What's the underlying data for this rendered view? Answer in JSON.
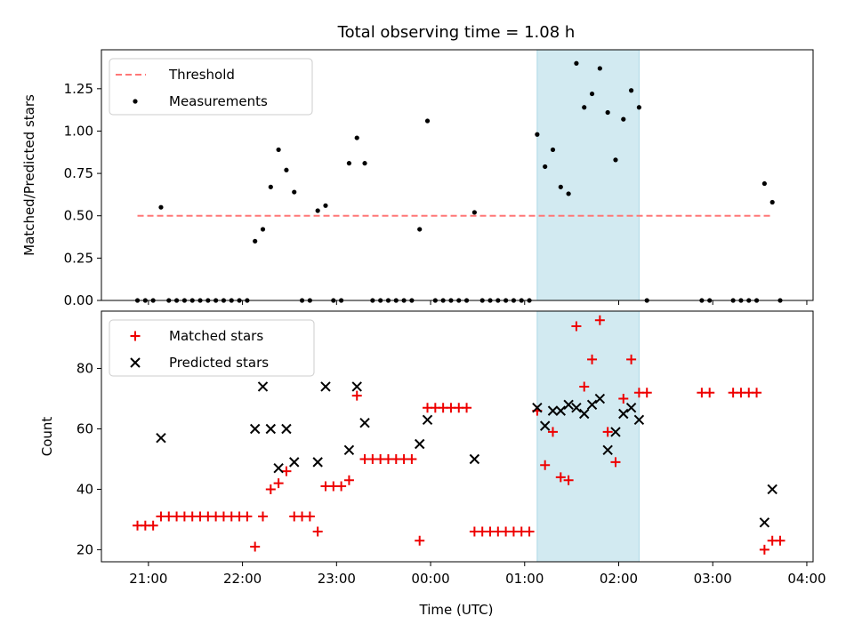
{
  "title": "Total observing time = 1.08 h",
  "colors": {
    "threshold": "#ff7777",
    "measurement": "#000000",
    "matched": "#ee0000",
    "predicted": "#000000",
    "span": "#add8e6"
  },
  "chart_data": [
    {
      "type": "scatter",
      "title": "Total observing time = 1.08 h",
      "xlabel": "",
      "ylabel": "Matched/Predicted stars",
      "xlim": [
        "20:30",
        "04:04"
      ],
      "ylim": [
        0,
        1.48
      ],
      "yticks": [
        "0.00",
        "0.25",
        "0.50",
        "0.75",
        "1.00",
        "1.25"
      ],
      "highlight_span": [
        "01:08",
        "02:13"
      ],
      "legend_position": "upper-left",
      "series": [
        {
          "name": "Threshold",
          "kind": "dashed-line",
          "x": [
            "20:53",
            "03:38"
          ],
          "y": [
            0.5,
            0.5
          ]
        },
        {
          "name": "Measurements",
          "kind": "points",
          "points": [
            [
              "20:53",
              0
            ],
            [
              "20:58",
              0
            ],
            [
              "21:03",
              0
            ],
            [
              "21:08",
              0.55
            ],
            [
              "21:13",
              0
            ],
            [
              "21:18",
              0
            ],
            [
              "21:23",
              0
            ],
            [
              "21:28",
              0
            ],
            [
              "21:33",
              0
            ],
            [
              "21:38",
              0
            ],
            [
              "21:43",
              0
            ],
            [
              "21:48",
              0
            ],
            [
              "21:53",
              0
            ],
            [
              "21:58",
              0
            ],
            [
              "22:03",
              0
            ],
            [
              "22:08",
              0.35
            ],
            [
              "22:13",
              0.42
            ],
            [
              "22:18",
              0.67
            ],
            [
              "22:23",
              0.89
            ],
            [
              "22:28",
              0.77
            ],
            [
              "22:33",
              0.64
            ],
            [
              "22:38",
              0
            ],
            [
              "22:43",
              0
            ],
            [
              "22:48",
              0.53
            ],
            [
              "22:53",
              0.56
            ],
            [
              "22:58",
              0
            ],
            [
              "23:03",
              0
            ],
            [
              "23:08",
              0.81
            ],
            [
              "23:13",
              0.96
            ],
            [
              "23:18",
              0.81
            ],
            [
              "23:23",
              0
            ],
            [
              "23:28",
              0
            ],
            [
              "23:33",
              0
            ],
            [
              "23:38",
              0
            ],
            [
              "23:43",
              0
            ],
            [
              "23:48",
              0
            ],
            [
              "23:53",
              0.42
            ],
            [
              "23:58",
              1.06
            ],
            [
              "00:03",
              0
            ],
            [
              "00:08",
              0
            ],
            [
              "00:13",
              0
            ],
            [
              "00:18",
              0
            ],
            [
              "00:23",
              0
            ],
            [
              "00:28",
              0.52
            ],
            [
              "00:33",
              0
            ],
            [
              "00:38",
              0
            ],
            [
              "00:43",
              0
            ],
            [
              "00:48",
              0
            ],
            [
              "00:53",
              0
            ],
            [
              "00:58",
              0
            ],
            [
              "01:03",
              0
            ],
            [
              "01:08",
              0.98
            ],
            [
              "01:13",
              0.79
            ],
            [
              "01:18",
              0.89
            ],
            [
              "01:23",
              0.67
            ],
            [
              "01:28",
              0.63
            ],
            [
              "01:33",
              1.4
            ],
            [
              "01:38",
              1.14
            ],
            [
              "01:43",
              1.22
            ],
            [
              "01:48",
              1.37
            ],
            [
              "01:53",
              1.11
            ],
            [
              "01:58",
              0.83
            ],
            [
              "02:03",
              1.07
            ],
            [
              "02:08",
              1.24
            ],
            [
              "02:13",
              1.14
            ],
            [
              "02:18",
              0
            ],
            [
              "02:53",
              0
            ],
            [
              "02:58",
              0
            ],
            [
              "03:13",
              0
            ],
            [
              "03:18",
              0
            ],
            [
              "03:23",
              0
            ],
            [
              "03:28",
              0
            ],
            [
              "03:33",
              0.69
            ],
            [
              "03:38",
              0.58
            ],
            [
              "03:43",
              0
            ]
          ]
        }
      ]
    },
    {
      "type": "scatter",
      "xlabel": "Time (UTC)",
      "ylabel": "Count",
      "xlim": [
        "20:30",
        "04:04"
      ],
      "ylim": [
        16,
        99
      ],
      "yticks": [
        "20",
        "40",
        "60",
        "80"
      ],
      "xticks": [
        "21:00",
        "22:00",
        "23:00",
        "00:00",
        "01:00",
        "02:00",
        "03:00",
        "04:00"
      ],
      "highlight_span": [
        "01:08",
        "02:13"
      ],
      "legend_position": "upper-left",
      "series": [
        {
          "name": "Matched stars",
          "kind": "plus",
          "points": [
            [
              "20:53",
              28
            ],
            [
              "20:58",
              28
            ],
            [
              "21:03",
              28
            ],
            [
              "21:08",
              31
            ],
            [
              "21:13",
              31
            ],
            [
              "21:18",
              31
            ],
            [
              "21:23",
              31
            ],
            [
              "21:28",
              31
            ],
            [
              "21:33",
              31
            ],
            [
              "21:38",
              31
            ],
            [
              "21:43",
              31
            ],
            [
              "21:48",
              31
            ],
            [
              "21:53",
              31
            ],
            [
              "21:58",
              31
            ],
            [
              "22:03",
              31
            ],
            [
              "22:08",
              21
            ],
            [
              "22:13",
              31
            ],
            [
              "22:18",
              40
            ],
            [
              "22:23",
              42
            ],
            [
              "22:28",
              46
            ],
            [
              "22:33",
              31
            ],
            [
              "22:38",
              31
            ],
            [
              "22:43",
              31
            ],
            [
              "22:48",
              26
            ],
            [
              "22:53",
              41
            ],
            [
              "22:58",
              41
            ],
            [
              "23:03",
              41
            ],
            [
              "23:08",
              43
            ],
            [
              "23:13",
              71
            ],
            [
              "23:18",
              50
            ],
            [
              "23:23",
              50
            ],
            [
              "23:28",
              50
            ],
            [
              "23:33",
              50
            ],
            [
              "23:38",
              50
            ],
            [
              "23:43",
              50
            ],
            [
              "23:48",
              50
            ],
            [
              "23:53",
              23
            ],
            [
              "23:58",
              67
            ],
            [
              "00:03",
              67
            ],
            [
              "00:08",
              67
            ],
            [
              "00:13",
              67
            ],
            [
              "00:18",
              67
            ],
            [
              "00:23",
              67
            ],
            [
              "00:28",
              26
            ],
            [
              "00:33",
              26
            ],
            [
              "00:38",
              26
            ],
            [
              "00:43",
              26
            ],
            [
              "00:48",
              26
            ],
            [
              "00:53",
              26
            ],
            [
              "00:58",
              26
            ],
            [
              "01:03",
              26
            ],
            [
              "01:08",
              66
            ],
            [
              "01:13",
              48
            ],
            [
              "01:18",
              59
            ],
            [
              "01:23",
              44
            ],
            [
              "01:28",
              43
            ],
            [
              "01:33",
              94
            ],
            [
              "01:38",
              74
            ],
            [
              "01:43",
              83
            ],
            [
              "01:48",
              96
            ],
            [
              "01:53",
              59
            ],
            [
              "01:58",
              49
            ],
            [
              "02:03",
              70
            ],
            [
              "02:08",
              83
            ],
            [
              "02:13",
              72
            ],
            [
              "02:18",
              72
            ],
            [
              "02:53",
              72
            ],
            [
              "02:58",
              72
            ],
            [
              "03:13",
              72
            ],
            [
              "03:18",
              72
            ],
            [
              "03:23",
              72
            ],
            [
              "03:28",
              72
            ],
            [
              "03:33",
              20
            ],
            [
              "03:38",
              23
            ],
            [
              "03:43",
              23
            ]
          ]
        },
        {
          "name": "Predicted stars",
          "kind": "cross",
          "points": [
            [
              "21:08",
              57
            ],
            [
              "22:08",
              60
            ],
            [
              "22:13",
              74
            ],
            [
              "22:18",
              60
            ],
            [
              "22:23",
              47
            ],
            [
              "22:28",
              60
            ],
            [
              "22:33",
              49
            ],
            [
              "22:48",
              49
            ],
            [
              "22:53",
              74
            ],
            [
              "23:08",
              53
            ],
            [
              "23:13",
              74
            ],
            [
              "23:18",
              62
            ],
            [
              "23:53",
              55
            ],
            [
              "23:58",
              63
            ],
            [
              "00:28",
              50
            ],
            [
              "01:08",
              67
            ],
            [
              "01:13",
              61
            ],
            [
              "01:18",
              66
            ],
            [
              "01:23",
              66
            ],
            [
              "01:28",
              68
            ],
            [
              "01:33",
              67
            ],
            [
              "01:38",
              65
            ],
            [
              "01:43",
              68
            ],
            [
              "01:48",
              70
            ],
            [
              "01:53",
              53
            ],
            [
              "01:58",
              59
            ],
            [
              "02:03",
              65
            ],
            [
              "02:08",
              67
            ],
            [
              "02:13",
              63
            ],
            [
              "03:33",
              29
            ],
            [
              "03:38",
              40
            ]
          ]
        }
      ]
    }
  ]
}
